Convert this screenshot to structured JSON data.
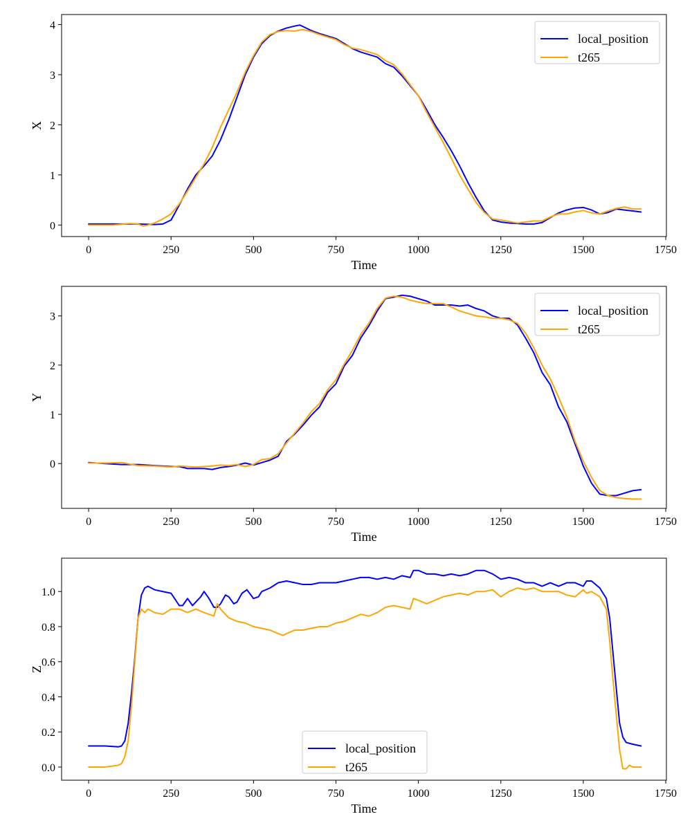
{
  "figure": {
    "background": "#ffffff"
  },
  "chart_data": [
    {
      "type": "line",
      "xlabel": "Time",
      "ylabel": "X",
      "xlim": [
        -82,
        1752
      ],
      "ylim": [
        -0.23,
        4.2
      ],
      "xticks": [
        0,
        250,
        500,
        750,
        1000,
        1250,
        1500,
        1750
      ],
      "yticks": [
        0,
        1,
        2,
        3,
        4
      ],
      "legend_position": "upper right",
      "series": [
        {
          "name": "local_position",
          "color": "#0000ff",
          "x": [
            0,
            100,
            150,
            200,
            225,
            250,
            275,
            300,
            325,
            350,
            375,
            400,
            425,
            450,
            475,
            500,
            525,
            550,
            575,
            600,
            625,
            640,
            650,
            675,
            700,
            725,
            750,
            775,
            800,
            825,
            850,
            875,
            900,
            925,
            950,
            975,
            1000,
            1025,
            1050,
            1075,
            1100,
            1125,
            1150,
            1175,
            1200,
            1225,
            1250,
            1275,
            1300,
            1325,
            1350,
            1375,
            1400,
            1425,
            1450,
            1475,
            1500,
            1525,
            1550,
            1575,
            1600,
            1625,
            1650,
            1675
          ],
          "y": [
            0.02,
            0.02,
            0.02,
            0.01,
            0.02,
            0.1,
            0.4,
            0.72,
            1.0,
            1.18,
            1.38,
            1.7,
            2.1,
            2.55,
            3.0,
            3.35,
            3.62,
            3.78,
            3.87,
            3.93,
            3.97,
            3.99,
            3.96,
            3.88,
            3.82,
            3.77,
            3.72,
            3.62,
            3.52,
            3.45,
            3.4,
            3.35,
            3.22,
            3.15,
            2.98,
            2.78,
            2.58,
            2.3,
            2.0,
            1.75,
            1.48,
            1.18,
            0.85,
            0.55,
            0.28,
            0.1,
            0.06,
            0.04,
            0.03,
            0.02,
            0.02,
            0.05,
            0.15,
            0.24,
            0.3,
            0.34,
            0.35,
            0.3,
            0.22,
            0.25,
            0.32,
            0.3,
            0.28,
            0.26
          ]
        },
        {
          "name": "t265",
          "color": "#ffa500",
          "x": [
            0,
            75,
            125,
            150,
            165,
            175,
            200,
            225,
            250,
            275,
            300,
            325,
            350,
            375,
            400,
            425,
            450,
            475,
            500,
            525,
            550,
            575,
            600,
            625,
            640,
            650,
            675,
            700,
            725,
            750,
            775,
            800,
            825,
            850,
            875,
            900,
            925,
            950,
            975,
            1000,
            1025,
            1050,
            1075,
            1100,
            1125,
            1150,
            1175,
            1200,
            1225,
            1250,
            1275,
            1300,
            1325,
            1350,
            1375,
            1400,
            1425,
            1450,
            1475,
            1500,
            1525,
            1550,
            1575,
            1600,
            1625,
            1650,
            1675
          ],
          "y": [
            0.0,
            0.0,
            0.03,
            0.02,
            -0.02,
            -0.01,
            0.04,
            0.12,
            0.22,
            0.42,
            0.68,
            0.95,
            1.22,
            1.55,
            1.95,
            2.3,
            2.65,
            3.05,
            3.38,
            3.65,
            3.8,
            3.86,
            3.88,
            3.87,
            3.89,
            3.9,
            3.86,
            3.8,
            3.75,
            3.7,
            3.6,
            3.53,
            3.5,
            3.45,
            3.4,
            3.28,
            3.2,
            3.02,
            2.8,
            2.58,
            2.25,
            1.95,
            1.65,
            1.33,
            1.0,
            0.72,
            0.45,
            0.25,
            0.12,
            0.1,
            0.07,
            0.04,
            0.06,
            0.08,
            0.08,
            0.16,
            0.22,
            0.22,
            0.26,
            0.29,
            0.24,
            0.22,
            0.28,
            0.33,
            0.36,
            0.32,
            0.32
          ]
        }
      ]
    },
    {
      "type": "line",
      "xlabel": "Time",
      "ylabel": "Y",
      "xlim": [
        -82,
        1752
      ],
      "ylim": [
        -0.91,
        3.6
      ],
      "xticks": [
        0,
        250,
        500,
        750,
        1000,
        1250,
        1500,
        1750
      ],
      "yticks": [
        0,
        1,
        2,
        3
      ],
      "legend_position": "upper right",
      "series": [
        {
          "name": "local_position",
          "color": "#0000ff",
          "x": [
            0,
            50,
            100,
            150,
            200,
            250,
            275,
            300,
            325,
            350,
            375,
            400,
            425,
            450,
            475,
            500,
            525,
            550,
            575,
            600,
            625,
            650,
            675,
            700,
            725,
            750,
            775,
            800,
            825,
            850,
            875,
            900,
            925,
            950,
            975,
            1000,
            1025,
            1050,
            1075,
            1100,
            1125,
            1150,
            1175,
            1200,
            1225,
            1250,
            1275,
            1300,
            1325,
            1350,
            1375,
            1400,
            1425,
            1450,
            1475,
            1500,
            1525,
            1550,
            1575,
            1600,
            1625,
            1650,
            1675
          ],
          "y": [
            0.02,
            0.0,
            -0.02,
            -0.02,
            -0.04,
            -0.06,
            -0.06,
            -0.1,
            -0.1,
            -0.1,
            -0.12,
            -0.08,
            -0.06,
            -0.03,
            0.01,
            -0.03,
            0.02,
            0.07,
            0.15,
            0.45,
            0.6,
            0.78,
            0.98,
            1.15,
            1.45,
            1.62,
            1.98,
            2.2,
            2.55,
            2.8,
            3.1,
            3.35,
            3.38,
            3.42,
            3.4,
            3.35,
            3.3,
            3.22,
            3.22,
            3.22,
            3.2,
            3.22,
            3.15,
            3.1,
            3.0,
            2.95,
            2.95,
            2.82,
            2.55,
            2.25,
            1.85,
            1.6,
            1.15,
            0.85,
            0.4,
            -0.05,
            -0.4,
            -0.62,
            -0.65,
            -0.65,
            -0.6,
            -0.55,
            -0.53
          ]
        },
        {
          "name": "t265",
          "color": "#ffa500",
          "x": [
            0,
            50,
            100,
            150,
            200,
            250,
            275,
            300,
            325,
            350,
            375,
            400,
            425,
            450,
            475,
            500,
            525,
            550,
            575,
            600,
            625,
            650,
            675,
            700,
            725,
            750,
            775,
            800,
            825,
            850,
            875,
            900,
            925,
            950,
            975,
            1000,
            1025,
            1050,
            1075,
            1100,
            1125,
            1150,
            1175,
            1200,
            1225,
            1250,
            1275,
            1300,
            1325,
            1350,
            1375,
            1400,
            1425,
            1450,
            1475,
            1500,
            1525,
            1550,
            1575,
            1600,
            1625,
            1650,
            1675
          ],
          "y": [
            0.01,
            0.01,
            0.02,
            -0.04,
            -0.05,
            -0.07,
            -0.05,
            -0.06,
            -0.07,
            -0.06,
            -0.05,
            -0.03,
            -0.04,
            -0.02,
            -0.06,
            -0.02,
            0.08,
            0.1,
            0.2,
            0.42,
            0.62,
            0.82,
            1.05,
            1.22,
            1.5,
            1.7,
            2.02,
            2.3,
            2.62,
            2.85,
            3.15,
            3.36,
            3.4,
            3.38,
            3.32,
            3.28,
            3.25,
            3.25,
            3.25,
            3.18,
            3.1,
            3.05,
            3.0,
            2.98,
            2.95,
            2.95,
            2.92,
            2.85,
            2.65,
            2.35,
            2.0,
            1.72,
            1.35,
            0.95,
            0.45,
            0.05,
            -0.28,
            -0.55,
            -0.65,
            -0.69,
            -0.71,
            -0.72,
            -0.72
          ]
        }
      ]
    },
    {
      "type": "line",
      "xlabel": "Time",
      "ylabel": "Z",
      "xlim": [
        -82,
        1752
      ],
      "ylim": [
        -0.075,
        1.19
      ],
      "xticks": [
        0,
        250,
        500,
        750,
        1000,
        1250,
        1500,
        1750
      ],
      "yticks": [
        0.0,
        0.2,
        0.4,
        0.6,
        0.8,
        1.0
      ],
      "legend_position": "lower center",
      "series": [
        {
          "name": "local_position",
          "color": "#0000ff",
          "x": [
            0,
            50,
            90,
            100,
            110,
            120,
            130,
            140,
            150,
            160,
            170,
            180,
            200,
            225,
            250,
            275,
            285,
            300,
            315,
            325,
            340,
            350,
            365,
            380,
            390,
            400,
            415,
            425,
            440,
            450,
            465,
            480,
            500,
            515,
            525,
            550,
            575,
            600,
            625,
            650,
            675,
            700,
            725,
            750,
            775,
            800,
            825,
            850,
            875,
            900,
            925,
            950,
            975,
            985,
            1000,
            1025,
            1050,
            1075,
            1100,
            1125,
            1150,
            1175,
            1200,
            1225,
            1250,
            1275,
            1300,
            1325,
            1350,
            1375,
            1400,
            1425,
            1450,
            1475,
            1500,
            1510,
            1525,
            1550,
            1570,
            1580,
            1590,
            1600,
            1610,
            1620,
            1630,
            1650,
            1675
          ],
          "y": [
            0.12,
            0.12,
            0.115,
            0.12,
            0.15,
            0.25,
            0.42,
            0.62,
            0.85,
            0.98,
            1.02,
            1.03,
            1.01,
            1.0,
            0.99,
            0.92,
            0.92,
            0.96,
            0.92,
            0.94,
            0.97,
            1.0,
            0.96,
            0.91,
            0.91,
            0.93,
            0.98,
            0.97,
            0.93,
            0.94,
            0.99,
            1.01,
            0.96,
            0.97,
            1.0,
            1.02,
            1.05,
            1.06,
            1.05,
            1.04,
            1.04,
            1.05,
            1.05,
            1.05,
            1.06,
            1.07,
            1.08,
            1.08,
            1.07,
            1.08,
            1.07,
            1.09,
            1.08,
            1.12,
            1.12,
            1.1,
            1.1,
            1.09,
            1.1,
            1.09,
            1.1,
            1.12,
            1.12,
            1.1,
            1.07,
            1.08,
            1.07,
            1.05,
            1.05,
            1.03,
            1.05,
            1.03,
            1.05,
            1.05,
            1.03,
            1.06,
            1.06,
            1.02,
            0.96,
            0.85,
            0.65,
            0.45,
            0.25,
            0.17,
            0.14,
            0.13,
            0.12
          ]
        },
        {
          "name": "t265",
          "color": "#ffa500",
          "x": [
            0,
            50,
            90,
            100,
            110,
            120,
            130,
            140,
            150,
            160,
            170,
            180,
            200,
            225,
            250,
            275,
            300,
            325,
            350,
            365,
            380,
            390,
            400,
            425,
            450,
            475,
            500,
            525,
            550,
            575,
            590,
            600,
            625,
            650,
            675,
            700,
            725,
            750,
            775,
            800,
            825,
            850,
            875,
            900,
            925,
            950,
            975,
            985,
            1000,
            1025,
            1050,
            1075,
            1100,
            1125,
            1150,
            1175,
            1200,
            1225,
            1250,
            1275,
            1300,
            1325,
            1350,
            1375,
            1400,
            1425,
            1450,
            1475,
            1500,
            1510,
            1525,
            1550,
            1570,
            1580,
            1590,
            1600,
            1610,
            1620,
            1630,
            1640,
            1650,
            1675
          ],
          "y": [
            0.0,
            0.0,
            0.01,
            0.02,
            0.06,
            0.15,
            0.35,
            0.6,
            0.85,
            0.9,
            0.88,
            0.9,
            0.88,
            0.87,
            0.9,
            0.9,
            0.88,
            0.9,
            0.88,
            0.87,
            0.86,
            0.93,
            0.9,
            0.85,
            0.83,
            0.82,
            0.8,
            0.79,
            0.78,
            0.76,
            0.75,
            0.76,
            0.78,
            0.78,
            0.79,
            0.8,
            0.8,
            0.82,
            0.83,
            0.85,
            0.87,
            0.86,
            0.88,
            0.91,
            0.92,
            0.91,
            0.9,
            0.96,
            0.95,
            0.93,
            0.95,
            0.97,
            0.98,
            0.99,
            0.98,
            1.0,
            1.0,
            1.01,
            0.97,
            1.0,
            1.02,
            1.01,
            1.02,
            1.0,
            1.0,
            1.0,
            0.98,
            0.97,
            1.01,
            0.99,
            1.0,
            0.97,
            0.9,
            0.72,
            0.5,
            0.3,
            0.1,
            -0.01,
            -0.01,
            0.01,
            -0.0,
            -0.0
          ]
        }
      ]
    }
  ]
}
